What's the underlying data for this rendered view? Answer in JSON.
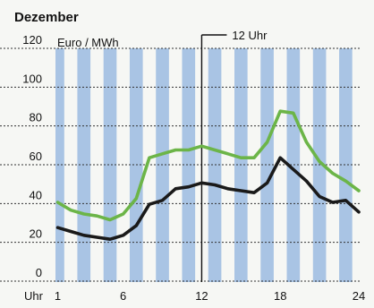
{
  "chart_data": {
    "type": "line",
    "title": "Dezember",
    "unit_label": "Euro / MWh",
    "xlabel": "Uhr",
    "x_tick_labels": [
      "1",
      "6",
      "12",
      "18",
      "24"
    ],
    "x_ticks": [
      1,
      6,
      12,
      18,
      24
    ],
    "y_tick_labels": [
      "0",
      "20",
      "40",
      "60",
      "80",
      "100",
      "120"
    ],
    "y_ticks": [
      0,
      20,
      40,
      60,
      80,
      100,
      120
    ],
    "xlim": [
      1,
      24
    ],
    "ylim": [
      0,
      120
    ],
    "grid": "horizontal dashed",
    "background": "alternating hourly blue stripes",
    "annotation": {
      "label": "12 Uhr",
      "x": 12
    },
    "x": [
      1,
      2,
      3,
      4,
      5,
      6,
      7,
      8,
      9,
      10,
      11,
      12,
      13,
      14,
      15,
      16,
      17,
      18,
      19,
      20,
      21,
      22,
      23,
      24
    ],
    "series": [
      {
        "color": "#6cb548",
        "values": [
          36,
          32,
          30,
          29,
          27,
          30,
          38,
          59,
          61,
          63,
          63,
          65,
          63,
          61,
          59,
          59,
          67,
          83,
          82,
          67,
          57,
          51,
          47,
          42
        ]
      },
      {
        "color": "#1a1a1a",
        "values": [
          23,
          21,
          19,
          18,
          17,
          19,
          24,
          35,
          37,
          43,
          44,
          46,
          45,
          43,
          42,
          41,
          46,
          59,
          53,
          47,
          39,
          36,
          37,
          31
        ]
      }
    ]
  },
  "colors": {
    "stripe": "#a9c4e4",
    "background": "#f6f7f4",
    "green_line": "#6cb548",
    "black_line": "#1a1a1a"
  }
}
